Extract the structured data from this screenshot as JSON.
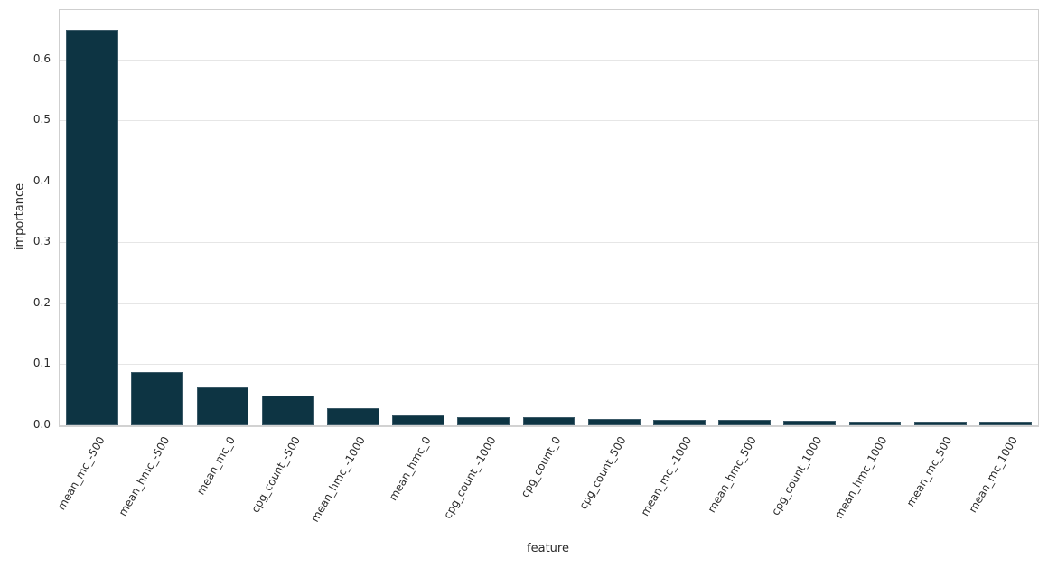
{
  "chart_data": {
    "type": "bar",
    "title": "",
    "xlabel": "feature",
    "ylabel": "importance",
    "categories": [
      "mean_mc_-500",
      "mean_hmc_-500",
      "mean_mc_0",
      "cpg_count_-500",
      "mean_hmc_-1000",
      "mean_hmc_0",
      "cpg_count_-1000",
      "cpg_count_0",
      "cpg_count_500",
      "mean_mc_-1000",
      "mean_hmc_500",
      "cpg_count_1000",
      "mean_hmc_1000",
      "mean_mc_500",
      "mean_mc_1000"
    ],
    "values": [
      0.65,
      0.088,
      0.062,
      0.049,
      0.028,
      0.016,
      0.0135,
      0.013,
      0.01,
      0.009,
      0.0088,
      0.008,
      0.0065,
      0.0055,
      0.0053
    ],
    "yticks": [
      0.0,
      0.1,
      0.2,
      0.3,
      0.4,
      0.5,
      0.6
    ],
    "ytick_labels": [
      "0.0",
      "0.1",
      "0.2",
      "0.3",
      "0.4",
      "0.5",
      "0.6"
    ],
    "ylim": [
      0,
      0.682
    ],
    "grid": true,
    "legend": null,
    "xtick_rotation_deg": 60,
    "bar_width_fraction": 0.8,
    "colors": {
      "bar_fill": "#0d3443",
      "bar_edge": "#3c5a68",
      "grid": "#e6e6e6",
      "spine": "#cfcfcf",
      "text": "#2b2b2b",
      "background": "#ffffff"
    }
  }
}
